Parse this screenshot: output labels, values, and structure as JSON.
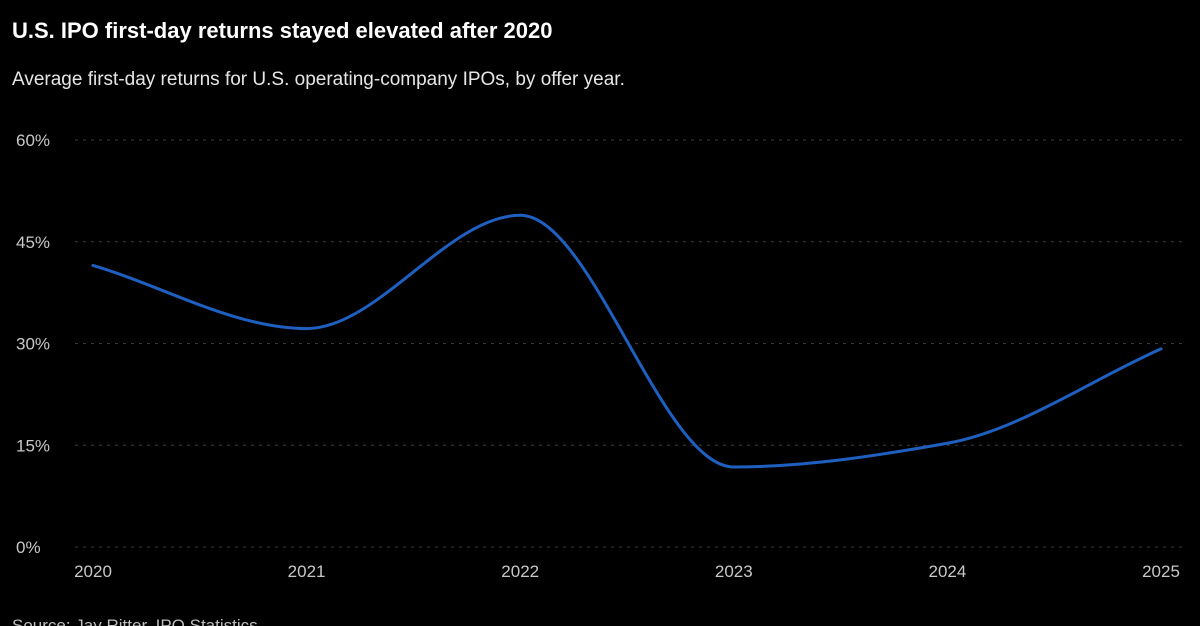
{
  "title": "U.S. IPO first-day returns stayed elevated after 2020",
  "subtitle": "Average first-day returns for U.S. operating-company IPOs, by offer year.",
  "source": "Source: Jay Ritter, IPO Statistics",
  "colors": {
    "background": "#000000",
    "line": "#1f5fbf",
    "grid": "#3a3a3a",
    "text": "#ffffff",
    "tick": "#c8c8c8"
  },
  "chart_data": {
    "type": "line",
    "title": "U.S. IPO first-day returns stayed elevated after 2020",
    "xlabel": "",
    "ylabel": "",
    "x": [
      "2020",
      "2021",
      "2022",
      "2023",
      "2024",
      "2025"
    ],
    "series": [
      {
        "values": [
          41.5,
          32.2,
          48.9,
          11.8,
          15.3,
          29.2
        ]
      }
    ],
    "ylim": [
      0,
      60
    ],
    "y_ticks": [
      0,
      15,
      30,
      45,
      60
    ],
    "y_tick_labels": [
      "0%",
      "15%",
      "30%",
      "45%",
      "60%"
    ],
    "grid": true,
    "grid_style": "dashed-horizontal",
    "legend": "none",
    "curve": "smooth"
  }
}
